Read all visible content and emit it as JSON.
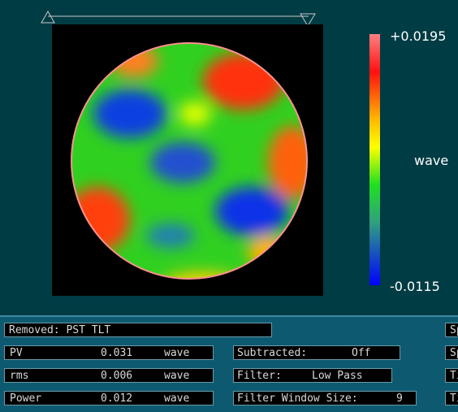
{
  "colorbar": {
    "max": "+0.0195",
    "unit": "wave",
    "min": "-0.0115"
  },
  "removed": "Removed: PST TLT",
  "results": [
    {
      "label": "PV",
      "value": "0.031",
      "unit": "wave"
    },
    {
      "label": "rms",
      "value": "0.006",
      "unit": "wave"
    },
    {
      "label": "Power",
      "value": "0.012",
      "unit": "wave"
    }
  ],
  "settings": [
    {
      "label": "Subtracted:",
      "value": "Off"
    },
    {
      "label": "Filter:",
      "value": "Low Pass"
    },
    {
      "label": "Filter Window Size:",
      "value": "9"
    }
  ],
  "side_tabs": [
    "Sp",
    "Sp",
    "Ti",
    "Ti"
  ]
}
